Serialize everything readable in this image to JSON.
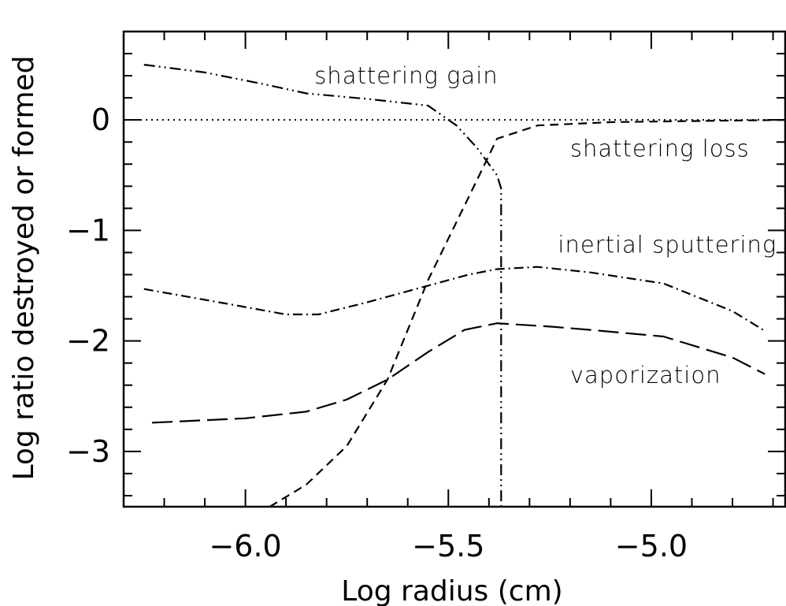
{
  "chart_data": {
    "type": "line",
    "xlabel": "Log radius (cm)",
    "ylabel": "Log ratio destroyed or formed",
    "xlim": [
      -6.3,
      -4.67
    ],
    "ylim": [
      -3.5,
      0.8
    ],
    "x_ticks": [
      {
        "value": -6.0,
        "label": "−6.0"
      },
      {
        "value": -5.5,
        "label": "−5.5"
      },
      {
        "value": -5.0,
        "label": "−5.0"
      }
    ],
    "y_ticks": [
      {
        "value": 0,
        "label": "0"
      },
      {
        "value": -1,
        "label": "−1"
      },
      {
        "value": -2,
        "label": "−2"
      },
      {
        "value": -3,
        "label": "−3"
      }
    ],
    "reference_line": {
      "y": 0,
      "style": "dotted"
    },
    "series": [
      {
        "name": "shattering gain",
        "style": "dash-dot-dot",
        "x": [
          -6.25,
          -6.1,
          -5.95,
          -5.85,
          -5.7,
          -5.55,
          -5.48,
          -5.43,
          -5.38,
          -5.37,
          -5.37
        ],
        "y": [
          0.5,
          0.43,
          0.32,
          0.24,
          0.19,
          0.13,
          -0.05,
          -0.25,
          -0.5,
          -0.62,
          -3.5
        ]
      },
      {
        "name": "shattering loss",
        "style": "short-dash",
        "x": [
          -5.94,
          -5.85,
          -5.75,
          -5.65,
          -5.55,
          -5.45,
          -5.38,
          -5.28,
          -5.1,
          -4.9,
          -4.67
        ],
        "y": [
          -3.5,
          -3.3,
          -2.95,
          -2.35,
          -1.45,
          -0.7,
          -0.17,
          -0.05,
          -0.02,
          -0.01,
          0.0
        ]
      },
      {
        "name": "inertial sputtering",
        "style": "dash-dot",
        "x": [
          -6.25,
          -6.05,
          -5.9,
          -5.82,
          -5.7,
          -5.55,
          -5.45,
          -5.38,
          -5.28,
          -5.15,
          -4.97,
          -4.8,
          -4.72
        ],
        "y": [
          -1.53,
          -1.66,
          -1.76,
          -1.76,
          -1.65,
          -1.5,
          -1.4,
          -1.35,
          -1.33,
          -1.38,
          -1.48,
          -1.73,
          -1.91
        ]
      },
      {
        "name": "vaporization",
        "style": "long-dash",
        "x": [
          -6.23,
          -6.0,
          -5.85,
          -5.75,
          -5.65,
          -5.55,
          -5.46,
          -5.38,
          -5.25,
          -5.15,
          -4.97,
          -4.8,
          -4.72
        ],
        "y": [
          -2.74,
          -2.7,
          -2.64,
          -2.53,
          -2.35,
          -2.1,
          -1.9,
          -1.84,
          -1.87,
          -1.9,
          -1.96,
          -2.15,
          -2.3
        ]
      }
    ],
    "annotations": [
      {
        "text": "shattering gain",
        "x": -5.83,
        "y": 0.33
      },
      {
        "text": "shattering loss",
        "x": -5.2,
        "y": -0.33
      },
      {
        "text": "inertial sputtering",
        "x": -5.23,
        "y": -1.2
      },
      {
        "text": "vaporization",
        "x": -5.2,
        "y": -2.38
      }
    ],
    "grid": false,
    "legend": "none"
  }
}
